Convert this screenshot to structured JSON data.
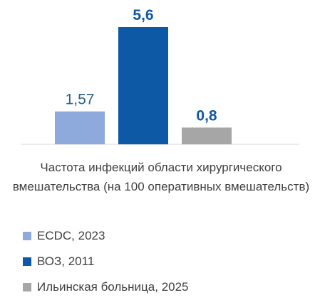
{
  "chart_data": {
    "type": "bar",
    "categories": [
      "ECDC, 2023",
      "ВОЗ, 2011",
      "Ильинская больница, 2025"
    ],
    "values": [
      1.57,
      5.6,
      0.8
    ],
    "value_labels": [
      "1,57",
      "5,6",
      "0,8"
    ],
    "colors": [
      "#8EA9DB",
      "#0E59A6",
      "#A6A6A6"
    ],
    "label_colors": [
      "#2F5E8E",
      "#0E59A6",
      "#0E59A6"
    ],
    "title": "",
    "xlabel": "Частота инфекций области хирургического вмешательства (на 100 оперативных вмешательств)",
    "ylabel": "",
    "ylim": [
      0,
      5.6
    ],
    "legend_position": "bottom",
    "grid": false
  }
}
